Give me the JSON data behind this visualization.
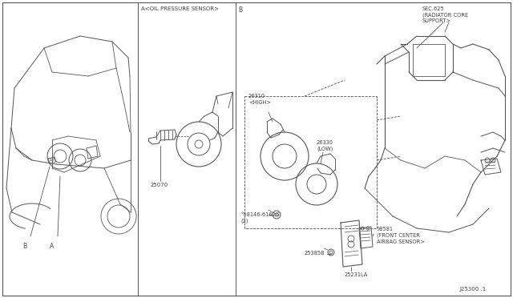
{
  "background_color": "#ffffff",
  "line_color": "#555555",
  "text_color": "#444444",
  "fig_width": 6.4,
  "fig_height": 3.72,
  "dpi": 100,
  "diagram_id": "J25300 .1",
  "labels": {
    "section_a_label": "A<OIL PRESSURE SENSOR>",
    "section_b_label": "B",
    "part_25070": "25070",
    "part_26310": "26310\n<HIGH>",
    "part_26330": "26330\n(LOW)",
    "part_08146": "°08146-6162G\n(2)",
    "part_25385b": "25385B",
    "part_25231la": "25231LA",
    "part_98581": "98581\n(FRONT CENTER\nAIRBAG SENSOR>",
    "sec_625": "SEC.625\n(RADIATOR CORE\nSUPPORT>",
    "label_a": "A",
    "label_b": "B"
  }
}
